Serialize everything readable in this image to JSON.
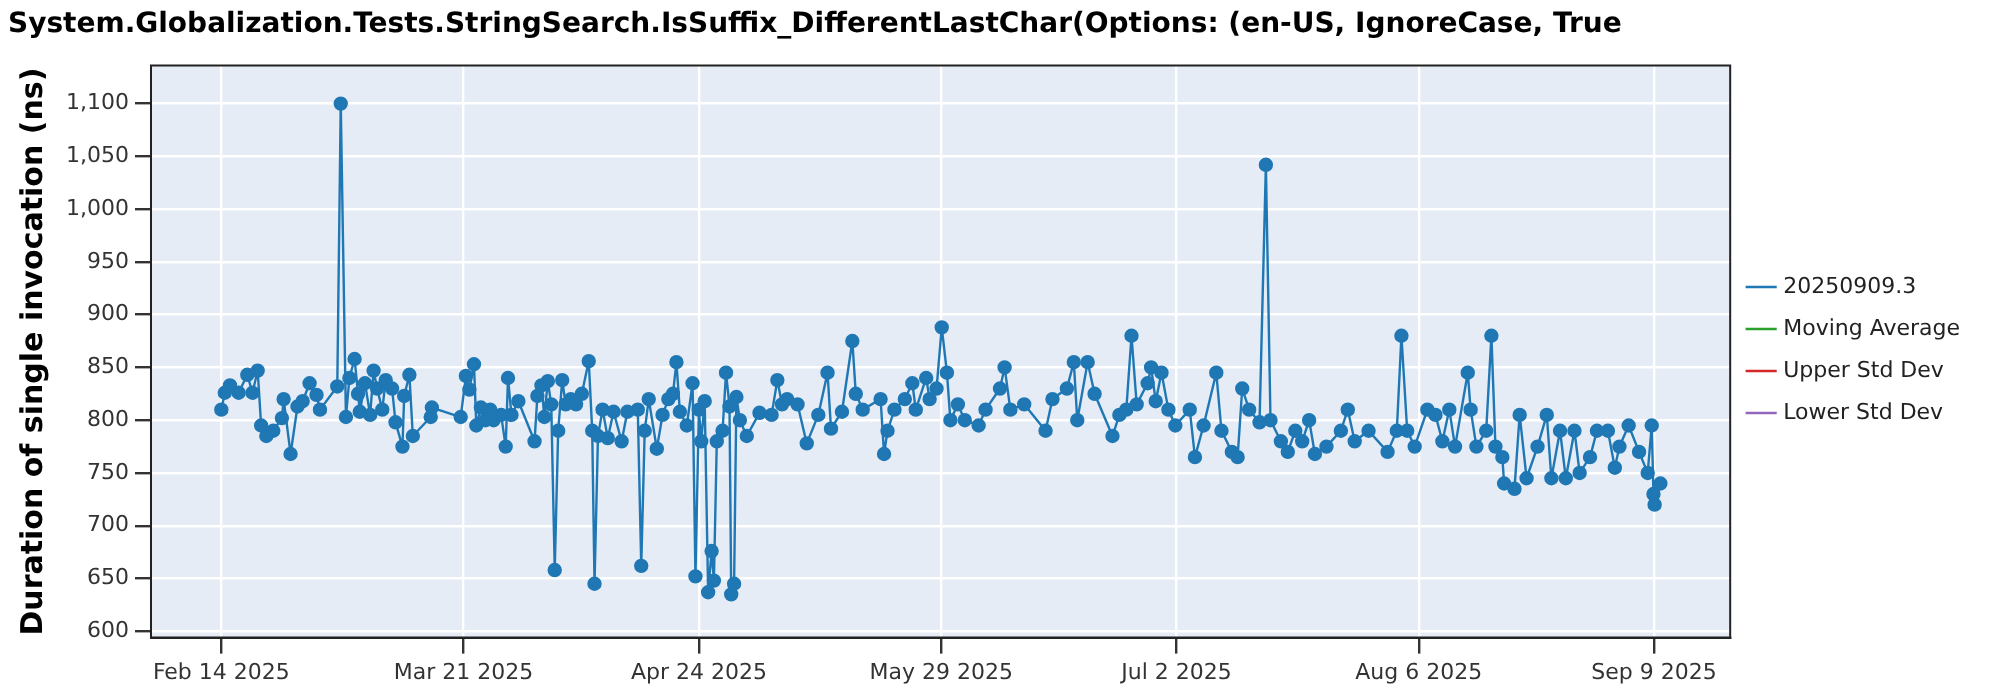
{
  "chart_data": {
    "type": "line",
    "title": "System.Globalization.Tests.StringSearch.IsSuffix_DifferentLastChar(Options: (en-US, IgnoreCase, True",
    "ylabel": "Duration of single invocation (ns)",
    "xlim": [
      "2025-02-03T20:00",
      "2025-09-20T00:00"
    ],
    "xticks": [
      {
        "value": "2025-02-14",
        "label": "Feb 14 2025"
      },
      {
        "value": "2025-03-21",
        "label": "Mar 21 2025"
      },
      {
        "value": "2025-04-24",
        "label": "Apr 24 2025"
      },
      {
        "value": "2025-05-29",
        "label": "May 29 2025"
      },
      {
        "value": "2025-07-02",
        "label": "Jul 2 2025"
      },
      {
        "value": "2025-08-06",
        "label": "Aug 6 2025"
      },
      {
        "value": "2025-09-09",
        "label": "Sep 9 2025"
      }
    ],
    "ylim": [
      594,
      1136
    ],
    "yticks": [
      600,
      650,
      700,
      750,
      800,
      850,
      900,
      950,
      {
        "value": 1000,
        "label": "1,000"
      },
      {
        "value": 1050,
        "label": "1,050"
      },
      {
        "value": 1100,
        "label": "1,100"
      }
    ],
    "grid": true,
    "legend": "right",
    "marker": "circle",
    "line_style": "solid",
    "series": [
      {
        "name": "20250909.3",
        "color": "#1f77b4",
        "x": [
          "2025-02-14T00:00",
          "2025-02-14T12:00",
          "2025-02-15T06:00",
          "2025-02-16T12:00",
          "2025-02-17T18:00",
          "2025-02-18T12:00",
          "2025-02-19T06:00",
          "2025-02-19T18:00",
          "2025-02-20T12:00",
          "2025-02-21T12:00",
          "2025-02-22T18:00",
          "2025-02-23T00:00",
          "2025-02-24T00:00",
          "2025-02-25T00:00",
          "2025-02-25T18:00",
          "2025-02-26T18:00",
          "2025-02-27T18:00",
          "2025-02-28T06:00",
          "2025-03-02T18:00",
          "2025-03-03T06:00",
          "2025-03-04T00:00",
          "2025-03-04T12:00",
          "2025-03-05T06:00",
          "2025-03-05T18:00",
          "2025-03-06T00:00",
          "2025-03-06T18:00",
          "2025-03-07T12:00",
          "2025-03-08T00:00",
          "2025-03-08T12:00",
          "2025-03-09T06:00",
          "2025-03-09T18:00",
          "2025-03-10T16:00",
          "2025-03-11T04:00",
          "2025-03-12T04:00",
          "2025-03-12T10:00",
          "2025-03-13T04:00",
          "2025-03-13T16:00",
          "2025-03-16T06:00",
          "2025-03-16T10:00",
          "2025-03-20T14:00",
          "2025-03-21T08:00",
          "2025-03-21T20:00",
          "2025-03-22T12:00",
          "2025-03-22T20:00",
          "2025-03-23T12:00",
          "2025-03-24T04:00",
          "2025-03-24T20:00",
          "2025-03-25T08:00",
          "2025-03-26T10:00",
          "2025-03-27T02:00",
          "2025-03-27T10:00",
          "2025-03-27T22:00",
          "2025-03-28T22:00",
          "2025-03-31T06:00",
          "2025-03-31T16:00",
          "2025-04-01T06:00",
          "2025-04-01T16:00",
          "2025-04-02T04:00",
          "2025-04-02T16:00",
          "2025-04-03T04:00",
          "2025-04-03T16:00",
          "2025-04-04T06:00",
          "2025-04-04T18:00",
          "2025-04-05T12:00",
          "2025-04-06T06:00",
          "2025-04-07T02:00",
          "2025-04-08T02:00",
          "2025-04-08T14:00",
          "2025-04-08T22:00",
          "2025-04-09T10:00",
          "2025-04-10T02:00",
          "2025-04-10T20:00",
          "2025-04-11T16:00",
          "2025-04-12T20:00",
          "2025-04-13T16:00",
          "2025-04-15T04:00",
          "2025-04-15T16:00",
          "2025-04-16T04:00",
          "2025-04-16T18:00",
          "2025-04-17T22:00",
          "2025-04-18T18:00",
          "2025-04-19T14:00",
          "2025-04-20T06:00",
          "2025-04-20T18:00",
          "2025-04-21T06:00",
          "2025-04-22T06:00",
          "2025-04-23T02:00",
          "2025-04-23T12:00",
          "2025-04-24T00:00",
          "2025-04-24T08:00",
          "2025-04-24T20:00",
          "2025-04-25T08:00",
          "2025-04-25T20:00",
          "2025-04-26T04:00",
          "2025-04-26T14:00",
          "2025-04-27T10:00",
          "2025-04-27T22:00",
          "2025-04-28T10:00",
          "2025-04-28T16:00",
          "2025-04-29T02:00",
          "2025-04-29T10:00",
          "2025-04-29T22:00",
          "2025-04-30T22:00",
          "2025-05-02T18:00",
          "2025-05-04T12:00",
          "2025-05-05T08:00",
          "2025-05-06T00:00",
          "2025-05-06T18:00",
          "2025-05-08T06:00",
          "2025-05-09T14:00",
          "2025-05-11T06:00",
          "2025-05-12T14:00",
          "2025-05-13T02:00",
          "2025-05-14T16:00",
          "2025-05-16T04:00",
          "2025-05-16T16:00",
          "2025-05-17T16:00",
          "2025-05-20T06:00",
          "2025-05-20T18:00",
          "2025-05-21T06:00",
          "2025-05-22T06:00",
          "2025-05-23T18:00",
          "2025-05-24T20:00",
          "2025-05-25T08:00",
          "2025-05-26T20:00",
          "2025-05-27T08:00",
          "2025-05-28T08:00",
          "2025-05-29T02:00",
          "2025-05-29T20:00",
          "2025-05-30T08:00",
          "2025-05-31T10:00",
          "2025-06-01T10:00",
          "2025-06-03T10:00",
          "2025-06-04T10:00",
          "2025-06-06T12:00",
          "2025-06-07T04:00",
          "2025-06-08T00:00",
          "2025-06-10T00:00",
          "2025-06-13T02:00",
          "2025-06-14T02:00",
          "2025-06-16T04:00",
          "2025-06-17T04:00",
          "2025-06-17T16:00",
          "2025-06-19T04:00",
          "2025-06-20T04:00",
          "2025-06-22T18:00",
          "2025-06-23T18:00",
          "2025-06-24T18:00",
          "2025-06-25T12:00",
          "2025-06-26T06:00",
          "2025-06-27T20:00",
          "2025-06-28T08:00",
          "2025-06-29T00:00",
          "2025-06-29T20:00",
          "2025-06-30T20:00",
          "2025-07-01T20:00",
          "2025-07-03T22:00",
          "2025-07-04T16:00",
          "2025-07-05T22:00",
          "2025-07-07T18:00",
          "2025-07-08T12:00",
          "2025-07-10T00:00",
          "2025-07-10T20:00",
          "2025-07-11T12:00",
          "2025-07-12T12:00",
          "2025-07-14T00:00",
          "2025-07-14T22:00",
          "2025-07-15T14:00",
          "2025-07-17T02:00",
          "2025-07-18T02:00",
          "2025-07-19T04:00",
          "2025-07-20T04:00",
          "2025-07-21T04:00",
          "2025-07-22T00:00",
          "2025-07-23T16:00",
          "2025-07-25T18:00",
          "2025-07-26T18:00",
          "2025-07-27T18:00",
          "2025-07-29T18:00",
          "2025-08-01T12:00",
          "2025-08-02T20:00",
          "2025-08-03T12:00",
          "2025-08-04T08:00",
          "2025-08-05T10:00",
          "2025-08-07T06:00",
          "2025-08-08T10:00",
          "2025-08-09T10:00",
          "2025-08-10T10:00",
          "2025-08-11T06:00",
          "2025-08-13T02:00",
          "2025-08-13T12:00",
          "2025-08-14T08:00",
          "2025-08-15T18:00",
          "2025-08-16T12:00",
          "2025-08-17T02:00",
          "2025-08-18T02:00",
          "2025-08-18T08:00",
          "2025-08-19T20:00",
          "2025-08-20T14:00",
          "2025-08-21T14:00",
          "2025-08-23T04:00",
          "2025-08-24T12:00",
          "2025-08-25T04:00",
          "2025-08-26T10:00",
          "2025-08-27T06:00",
          "2025-08-28T12:00",
          "2025-08-29T06:00",
          "2025-08-30T18:00",
          "2025-08-31T18:00",
          "2025-09-02T08:00",
          "2025-09-03T08:00",
          "2025-09-04T00:00",
          "2025-09-05T08:00",
          "2025-09-06T20:00",
          "2025-09-08T02:00",
          "2025-09-08T16:00",
          "2025-09-08T22:00",
          "2025-09-09T02:00",
          "2025-09-09T22:00"
        ],
        "values": [
          810,
          826,
          833,
          826,
          843,
          826,
          847,
          795,
          785,
          790,
          802,
          820,
          768,
          813,
          818,
          835,
          824,
          810,
          832,
          1100,
          803,
          840,
          858,
          825,
          808,
          835,
          805,
          847,
          830,
          810,
          838,
          830,
          798,
          775,
          823,
          843,
          785,
          803,
          812,
          803,
          842,
          829,
          853,
          795,
          812,
          800,
          810,
          800,
          805,
          775,
          840,
          805,
          818,
          780,
          823,
          833,
          803,
          837,
          815,
          658,
          790,
          838,
          815,
          820,
          815,
          825,
          856,
          790,
          645,
          785,
          810,
          783,
          808,
          780,
          808,
          810,
          662,
          790,
          820,
          773,
          805,
          820,
          825,
          855,
          808,
          795,
          835,
          652,
          810,
          780,
          818,
          637,
          676,
          648,
          780,
          790,
          845,
          813,
          635,
          645,
          822,
          800,
          785,
          807,
          805,
          838,
          815,
          820,
          815,
          778,
          805,
          845,
          792,
          808,
          875,
          825,
          810,
          820,
          768,
          790,
          810,
          820,
          835,
          810,
          840,
          820,
          830,
          888,
          845,
          800,
          815,
          800,
          795,
          810,
          830,
          850,
          810,
          815,
          790,
          820,
          830,
          855,
          800,
          855,
          825,
          785,
          805,
          810,
          880,
          815,
          835,
          850,
          818,
          845,
          810,
          795,
          810,
          765,
          795,
          845,
          790,
          770,
          765,
          830,
          810,
          798,
          1042,
          800,
          780,
          770,
          790,
          780,
          800,
          768,
          775,
          790,
          810,
          780,
          790,
          770,
          790,
          880,
          790,
          775,
          810,
          805,
          780,
          810,
          775,
          845,
          810,
          775,
          790,
          880,
          775,
          765,
          740,
          735,
          805,
          745,
          775,
          805,
          745,
          790,
          745,
          790,
          750,
          765,
          790,
          790,
          755,
          775,
          795,
          770,
          750,
          795,
          730,
          720,
          740
        ]
      },
      {
        "name": "Moving Average",
        "color": "#2ca02c"
      },
      {
        "name": "Upper Std Dev",
        "color": "#d62728"
      },
      {
        "name": "Lower Std Dev",
        "color": "#9467bd"
      }
    ]
  }
}
